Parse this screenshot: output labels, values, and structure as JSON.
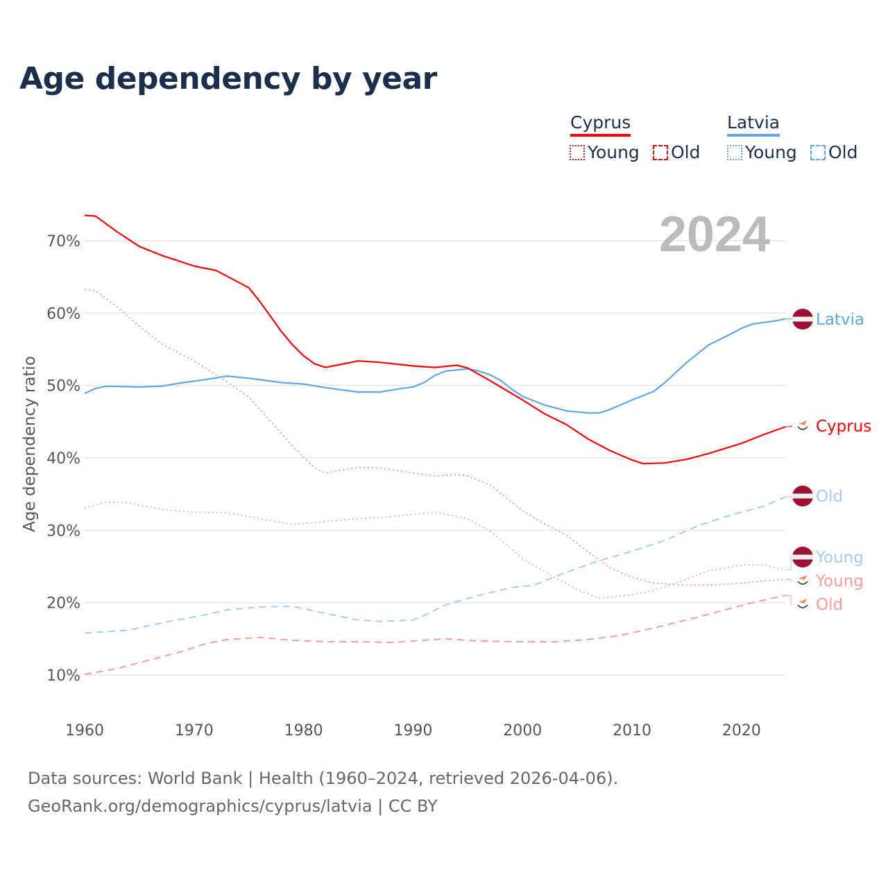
{
  "chart_data": {
    "type": "line",
    "title": "Age dependency by year",
    "ylabel": "Age dependency ratio",
    "xlabel": "",
    "xlim": [
      1960,
      2024
    ],
    "ylim": [
      5,
      75
    ],
    "x_ticks": [
      1960,
      1970,
      1980,
      1990,
      2000,
      2010,
      2020
    ],
    "y_ticks": [
      10,
      20,
      30,
      40,
      50,
      60,
      70
    ],
    "y_tick_labels": [
      "10%",
      "20%",
      "30%",
      "40%",
      "50%",
      "60%",
      "70%"
    ],
    "grid": true,
    "year_watermark": "2024",
    "legend": {
      "placement": "top-right",
      "groups": [
        {
          "country": "Cyprus",
          "color": "#ff0000",
          "items": [
            "Young",
            "Old"
          ]
        },
        {
          "country": "Latvia",
          "color": "#5fa5ea",
          "items": [
            "Young",
            "Old"
          ]
        }
      ]
    },
    "series": [
      {
        "name": "Cyprus",
        "label": "Cyprus",
        "color": "#ff0000",
        "style": "solid",
        "width": 2.2,
        "points": [
          [
            1960,
            73.5
          ],
          [
            1961,
            73.4
          ],
          [
            1963,
            71.2
          ],
          [
            1965,
            69.2
          ],
          [
            1967,
            68
          ],
          [
            1970,
            66.5
          ],
          [
            1972,
            65.9
          ],
          [
            1975,
            63.5
          ],
          [
            1976,
            61.6
          ],
          [
            1978,
            57.4
          ],
          [
            1979,
            55.6
          ],
          [
            1980,
            54.1
          ],
          [
            1981,
            53
          ],
          [
            1982,
            52.5
          ],
          [
            1983,
            52.8
          ],
          [
            1985,
            53.4
          ],
          [
            1987,
            53.2
          ],
          [
            1990,
            52.7
          ],
          [
            1992,
            52.5
          ],
          [
            1994,
            52.8
          ],
          [
            1995,
            52.4
          ],
          [
            1997,
            50.7
          ],
          [
            2000,
            48
          ],
          [
            2002,
            46.1
          ],
          [
            2004,
            44.6
          ],
          [
            2006,
            42.6
          ],
          [
            2008,
            41
          ],
          [
            2010,
            39.7
          ],
          [
            2011,
            39.2
          ],
          [
            2013,
            39.3
          ],
          [
            2015,
            39.8
          ],
          [
            2017,
            40.6
          ],
          [
            2020,
            42
          ],
          [
            2022,
            43.2
          ],
          [
            2024,
            44.3
          ]
        ]
      },
      {
        "name": "Latvia",
        "label": "Latvia",
        "color": "#5fa5ea",
        "style": "solid",
        "width": 2.2,
        "points": [
          [
            1960,
            48.9
          ],
          [
            1961,
            49.6
          ],
          [
            1962,
            49.9
          ],
          [
            1965,
            49.8
          ],
          [
            1967,
            49.9
          ],
          [
            1969,
            50.4
          ],
          [
            1971,
            50.8
          ],
          [
            1973,
            51.3
          ],
          [
            1975,
            51
          ],
          [
            1978,
            50.4
          ],
          [
            1980,
            50.2
          ],
          [
            1982,
            49.7
          ],
          [
            1985,
            49.1
          ],
          [
            1987,
            49.1
          ],
          [
            1989,
            49.6
          ],
          [
            1990,
            49.8
          ],
          [
            1991,
            50.4
          ],
          [
            1992,
            51.4
          ],
          [
            1993,
            52
          ],
          [
            1995,
            52.3
          ],
          [
            1996,
            52
          ],
          [
            1997,
            51.5
          ],
          [
            1998,
            50.7
          ],
          [
            1999,
            49.5
          ],
          [
            2000,
            48.5
          ],
          [
            2002,
            47.3
          ],
          [
            2004,
            46.5
          ],
          [
            2006,
            46.2
          ],
          [
            2007,
            46.2
          ],
          [
            2008,
            46.7
          ],
          [
            2010,
            48
          ],
          [
            2012,
            49.2
          ],
          [
            2013,
            50.4
          ],
          [
            2015,
            53.2
          ],
          [
            2017,
            55.6
          ],
          [
            2019,
            57.1
          ],
          [
            2020,
            57.9
          ],
          [
            2021,
            58.5
          ],
          [
            2023,
            58.9
          ],
          [
            2024,
            59.2
          ]
        ]
      },
      {
        "name": "Cyprus Young",
        "label": "Young",
        "color": "#ff9a9a",
        "style": "dotted",
        "width": 2,
        "points": [
          [
            1960,
            63.3
          ],
          [
            1961,
            63.1
          ],
          [
            1963,
            60.8
          ],
          [
            1965,
            58.2
          ],
          [
            1967,
            55.8
          ],
          [
            1970,
            53.4
          ],
          [
            1973,
            50.5
          ],
          [
            1975,
            48.4
          ],
          [
            1977,
            45
          ],
          [
            1979,
            41.6
          ],
          [
            1981,
            38.6
          ],
          [
            1982,
            37.9
          ],
          [
            1985,
            38.7
          ],
          [
            1987,
            38.6
          ],
          [
            1990,
            37.9
          ],
          [
            1992,
            37.5
          ],
          [
            1994,
            37.7
          ],
          [
            1995,
            37.5
          ],
          [
            1997,
            36.3
          ],
          [
            2000,
            32.7
          ],
          [
            2002,
            30.9
          ],
          [
            2004,
            29.3
          ],
          [
            2006,
            27
          ],
          [
            2008,
            24.8
          ],
          [
            2010,
            23.5
          ],
          [
            2012,
            22.7
          ],
          [
            2015,
            22.4
          ],
          [
            2018,
            22.5
          ],
          [
            2020,
            22.7
          ],
          [
            2022,
            23
          ],
          [
            2024,
            23.2
          ]
        ]
      },
      {
        "name": "Cyprus Old",
        "label": "Old",
        "color": "#ff9a9a",
        "style": "dashed",
        "width": 2,
        "points": [
          [
            1960,
            10.1
          ],
          [
            1963,
            10.9
          ],
          [
            1966,
            12.1
          ],
          [
            1969,
            13.3
          ],
          [
            1971,
            14.3
          ],
          [
            1973,
            14.9
          ],
          [
            1976,
            15.2
          ],
          [
            1979,
            14.8
          ],
          [
            1982,
            14.6
          ],
          [
            1985,
            14.6
          ],
          [
            1988,
            14.5
          ],
          [
            1991,
            14.8
          ],
          [
            1993,
            15
          ],
          [
            1996,
            14.7
          ],
          [
            2000,
            14.6
          ],
          [
            2003,
            14.6
          ],
          [
            2006,
            14.9
          ],
          [
            2009,
            15.5
          ],
          [
            2012,
            16.5
          ],
          [
            2015,
            17.6
          ],
          [
            2018,
            18.8
          ],
          [
            2021,
            20
          ],
          [
            2024,
            21
          ]
        ]
      },
      {
        "name": "Latvia Young",
        "label": "Young",
        "color": "#a9cbf2",
        "style": "dotted",
        "width": 2,
        "points": [
          [
            1960,
            33.1
          ],
          [
            1962,
            33.9
          ],
          [
            1964,
            33.8
          ],
          [
            1967,
            32.9
          ],
          [
            1970,
            32.5
          ],
          [
            1973,
            32.4
          ],
          [
            1976,
            31.6
          ],
          [
            1979,
            30.8
          ],
          [
            1982,
            31.2
          ],
          [
            1985,
            31.6
          ],
          [
            1988,
            31.9
          ],
          [
            1990,
            32.2
          ],
          [
            1992,
            32.5
          ],
          [
            1995,
            31.6
          ],
          [
            1997,
            29.9
          ],
          [
            2000,
            26.1
          ],
          [
            2003,
            23.4
          ],
          [
            2005,
            21.8
          ],
          [
            2007,
            20.6
          ],
          [
            2010,
            21.1
          ],
          [
            2012,
            21.7
          ],
          [
            2014,
            22.7
          ],
          [
            2017,
            24.4
          ],
          [
            2020,
            25.2
          ],
          [
            2022,
            25.2
          ],
          [
            2024,
            24.5
          ]
        ]
      },
      {
        "name": "Latvia Old",
        "label": "Old",
        "color": "#a9cbf2",
        "style": "dashed",
        "width": 2,
        "points": [
          [
            1960,
            15.8
          ],
          [
            1964,
            16.2
          ],
          [
            1968,
            17.5
          ],
          [
            1971,
            18.3
          ],
          [
            1973,
            19
          ],
          [
            1976,
            19.4
          ],
          [
            1979,
            19.5
          ],
          [
            1982,
            18.5
          ],
          [
            1985,
            17.6
          ],
          [
            1987,
            17.4
          ],
          [
            1990,
            17.6
          ],
          [
            1991,
            18.2
          ],
          [
            1993,
            19.7
          ],
          [
            1996,
            21
          ],
          [
            1999,
            22.1
          ],
          [
            2001,
            22.4
          ],
          [
            2004,
            24.2
          ],
          [
            2007,
            25.8
          ],
          [
            2010,
            27.1
          ],
          [
            2013,
            28.6
          ],
          [
            2016,
            30.6
          ],
          [
            2019,
            32.1
          ],
          [
            2022,
            33.3
          ],
          [
            2024,
            34.6
          ]
        ]
      }
    ]
  },
  "footer": {
    "line1": "Data sources: World Bank | Health (1960–2024, retrieved 2026-04-06).",
    "line2": "GeoRank.org/demographics/cyprus/latvia | CC BY"
  }
}
